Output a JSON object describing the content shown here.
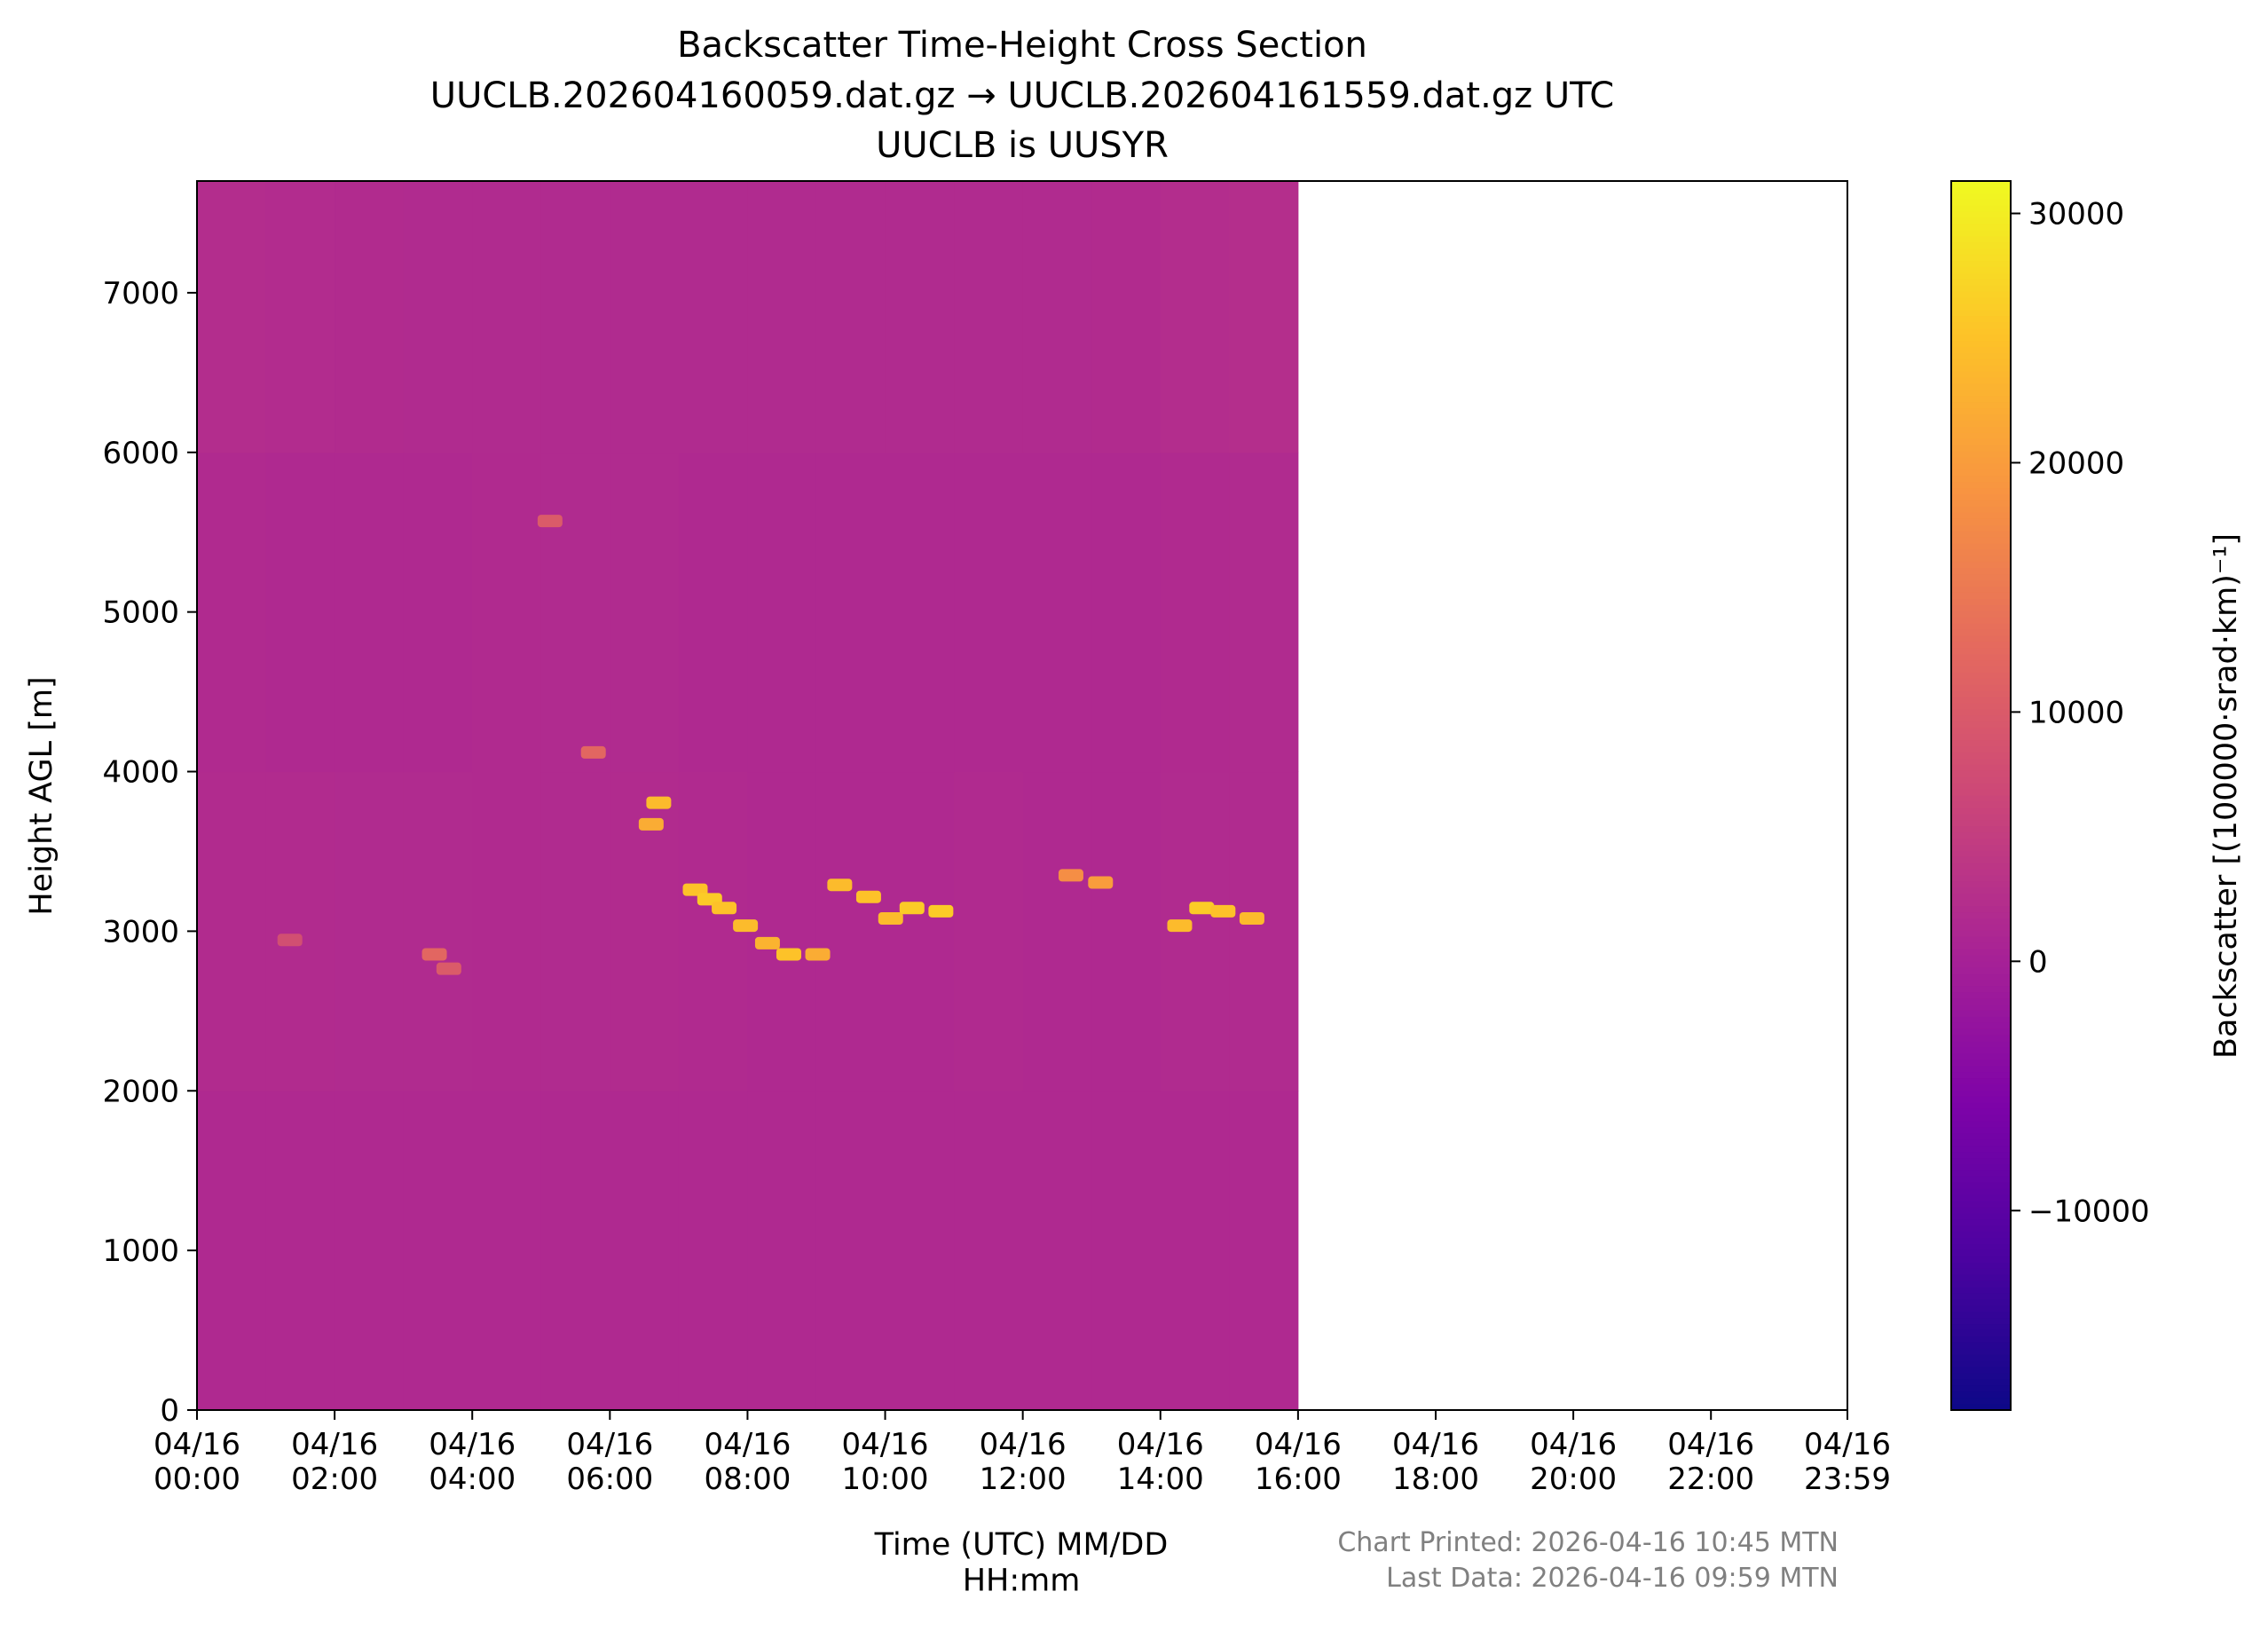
{
  "chart_data": {
    "type": "heatmap",
    "title": [
      "Backscatter Time-Height Cross Section",
      "UUCLB.202604160059.dat.gz → UUCLB.202604161559.dat.gz UTC",
      "UUCLB is UUSYR"
    ],
    "xlabel": "Time (UTC) MM/DD\nHH:mm",
    "ylabel": "Height AGL [m]",
    "colorbar_label": "Backscatter [(100000·srad·km)⁻¹]",
    "annotations": [
      "Chart Printed: 2026-04-16 10:45 MTN",
      "Last Data: 2026-04-16 09:59 MTN"
    ],
    "colormap": "plasma",
    "clim": [
      -18000,
      31300
    ],
    "cticks": [
      {
        "value": -10000,
        "label": "−10000"
      },
      0,
      10000,
      20000,
      30000
    ],
    "xlim": [
      0,
      23.983
    ],
    "xticks": [
      {
        "value": 0,
        "label": "04/16\n00:00"
      },
      {
        "value": 2,
        "label": "04/16\n02:00"
      },
      {
        "value": 4,
        "label": "04/16\n04:00"
      },
      {
        "value": 6,
        "label": "04/16\n06:00"
      },
      {
        "value": 8,
        "label": "04/16\n08:00"
      },
      {
        "value": 10,
        "label": "04/16\n10:00"
      },
      {
        "value": 12,
        "label": "04/16\n12:00"
      },
      {
        "value": 14,
        "label": "04/16\n14:00"
      },
      {
        "value": 16,
        "label": "04/16\n16:00"
      },
      {
        "value": 18,
        "label": "04/16\n18:00"
      },
      {
        "value": 20,
        "label": "04/16\n20:00"
      },
      {
        "value": 22,
        "label": "04/16\n22:00"
      },
      {
        "value": 23.983,
        "label": "04/16\n23:59"
      }
    ],
    "ylim": [
      0,
      7700
    ],
    "yticks": [
      0,
      1000,
      2000,
      3000,
      4000,
      5000,
      6000,
      7000
    ],
    "x_edges": [
      0,
      1,
      2,
      3,
      4,
      5,
      6,
      7,
      8,
      9,
      10,
      11,
      12,
      13,
      14,
      15,
      16
    ],
    "y_edges": [
      0,
      2000,
      4000,
      6000,
      7700
    ],
    "values": [
      [
        1500,
        1500,
        1500,
        1500,
        1500,
        1500,
        1500,
        1500,
        1500,
        1500,
        1500,
        1500,
        1500,
        1500,
        1500,
        1500
      ],
      [
        1900,
        1900,
        1800,
        1800,
        1700,
        1800,
        1900,
        1700,
        1600,
        1600,
        1600,
        1700,
        1600,
        1600,
        1800,
        1800
      ],
      [
        1700,
        1600,
        1600,
        1600,
        1700,
        1800,
        1800,
        1600,
        1600,
        1600,
        1600,
        1600,
        1600,
        1600,
        1700,
        1800
      ],
      [
        2200,
        2000,
        1900,
        1800,
        1800,
        1800,
        1800,
        1800,
        1800,
        1800,
        1800,
        1800,
        1800,
        1900,
        2200,
        2400
      ]
    ],
    "features": [
      [
        7.24,
        3260,
        25000
      ],
      [
        7.45,
        3200,
        26000
      ],
      [
        7.66,
        3145,
        25000
      ],
      [
        7.97,
        3035,
        24000
      ],
      [
        8.29,
        2925,
        23000
      ],
      [
        8.6,
        2855,
        25000
      ],
      [
        9.02,
        2855,
        22000
      ],
      [
        9.34,
        3290,
        24000
      ],
      [
        9.76,
        3215,
        25000
      ],
      [
        10.08,
        3080,
        24000
      ],
      [
        10.39,
        3145,
        26000
      ],
      [
        10.81,
        3125,
        26000
      ],
      [
        6.71,
        3805,
        24000
      ],
      [
        6.6,
        3670,
        22000
      ],
      [
        12.7,
        3350,
        18000
      ],
      [
        13.13,
        3305,
        20000
      ],
      [
        14.28,
        3035,
        24000
      ],
      [
        14.6,
        3145,
        26000
      ],
      [
        14.91,
        3125,
        25000
      ],
      [
        15.33,
        3080,
        24000
      ],
      [
        3.45,
        2855,
        12000
      ],
      [
        3.66,
        2765,
        10000
      ],
      [
        1.35,
        2945,
        8000
      ],
      [
        5.13,
        5570,
        10000
      ],
      [
        5.76,
        4120,
        12000
      ]
    ]
  }
}
